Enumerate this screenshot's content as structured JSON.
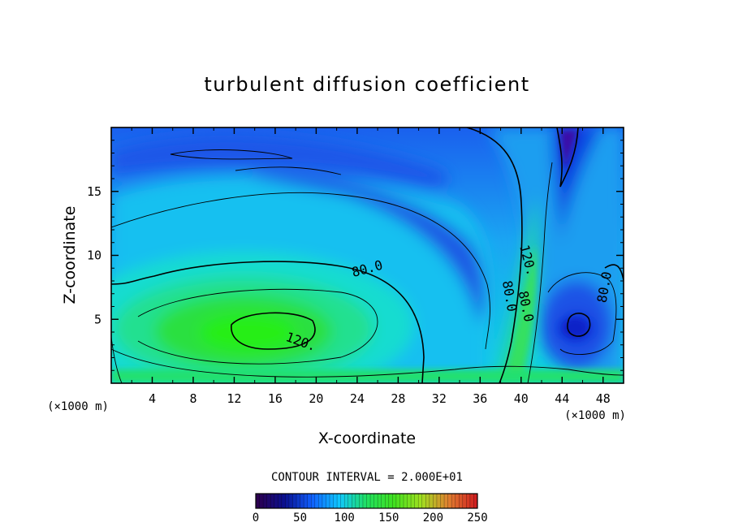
{
  "chart_data": {
    "type": "heatmap",
    "title": "turbulent diffusion coefficient",
    "xlabel": "X-coordinate",
    "ylabel": "Z-coordinate",
    "x_unit": "(×1000 m)",
    "x_unit_right": "(×1000 m)",
    "xlim": [
      0,
      50
    ],
    "ylim": [
      0,
      20
    ],
    "x_ticks": [
      4,
      8,
      12,
      16,
      20,
      24,
      28,
      32,
      36,
      40,
      44,
      48
    ],
    "y_ticks": [
      5,
      10,
      15
    ],
    "contour_interval_text": "CONTOUR INTERVAL = 2.000E+01",
    "contour_labels": [
      {
        "text": "80.0",
        "x": 25,
        "y": 8.9,
        "angle": 15
      },
      {
        "text": "120.",
        "x": 18.5,
        "y": 3.2,
        "angle": -20
      },
      {
        "text": "80.0",
        "x": 38.8,
        "y": 6.8,
        "angle": -80
      },
      {
        "text": "120.",
        "x": 40.6,
        "y": 9.6,
        "angle": -75
      },
      {
        "text": "80.0",
        "x": 40.4,
        "y": 6.0,
        "angle": -78
      },
      {
        "text": "80.0",
        "x": 48.2,
        "y": 7.5,
        "angle": 80
      }
    ],
    "colorbar": {
      "min": 0,
      "max": 250,
      "ticks": [
        0,
        50,
        100,
        150,
        200,
        250
      ],
      "colors": [
        "#2b0050",
        "#0a1090",
        "#1060ff",
        "#10c8ff",
        "#20e060",
        "#40e020",
        "#a0e020",
        "#e08030",
        "#d02020"
      ]
    },
    "palette": {
      "min": "#2b0060",
      "deep_blue": "#0b2ad8",
      "blue": "#1e6cf0",
      "cyan": "#14c8f4",
      "aqua": "#10e0d4",
      "green": "#2ce040",
      "green_bright": "#22ee10"
    }
  }
}
